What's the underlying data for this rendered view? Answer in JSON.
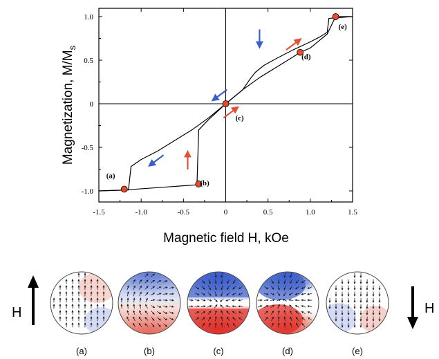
{
  "chart_data": {
    "type": "line",
    "xlabel": "Magnetic field H, kOe",
    "ylabel_main": "Magnetization, M/M",
    "ylabel_sub": "s",
    "xlim": [
      -1.5,
      1.5
    ],
    "ylim": [
      -1.0,
      1.0
    ],
    "x_ticks": [
      -1.5,
      -1,
      -0.5,
      0,
      0.5,
      1,
      1.5
    ],
    "x_tick_labels": [
      "-1.5",
      "-1.0",
      "-0.5",
      "0",
      "0.5",
      "1.0",
      "1.5"
    ],
    "y_ticks": [
      -1,
      -0.5,
      0,
      0.5,
      1
    ],
    "y_tick_labels": [
      "-1.0",
      "-0.5",
      "0",
      "0.5",
      "1.0"
    ],
    "series": [
      {
        "branch": "decreasing-field",
        "x": [
          1.5,
          1.22,
          1.2,
          1.1,
          1.0,
          0.8,
          0.6,
          0.45,
          0.4,
          0.35,
          0.3,
          0.2,
          0.0,
          -0.2,
          -0.4,
          -0.6,
          -0.8,
          -1.0,
          -1.12,
          -1.15,
          -1.5
        ],
        "y": [
          1.0,
          0.98,
          0.82,
          0.76,
          0.71,
          0.62,
          0.52,
          0.44,
          0.4,
          0.36,
          0.3,
          0.16,
          0.0,
          -0.16,
          -0.3,
          -0.42,
          -0.54,
          -0.64,
          -0.72,
          -0.99,
          -1.0
        ]
      },
      {
        "branch": "increasing-field",
        "x": [
          -1.5,
          -1.2,
          -0.34,
          -0.32,
          -0.2,
          0.0,
          0.2,
          0.4,
          0.6,
          0.8,
          0.88,
          1.0,
          1.1,
          1.2,
          1.3,
          1.5
        ],
        "y": [
          -1.0,
          -0.99,
          -0.93,
          -0.3,
          -0.18,
          0.0,
          0.16,
          0.3,
          0.42,
          0.54,
          0.59,
          0.64,
          0.72,
          0.8,
          1.0,
          1.0
        ]
      }
    ],
    "points": [
      {
        "label": "(a)",
        "x": -1.2,
        "y": -0.98
      },
      {
        "label": "(b)",
        "x": -0.32,
        "y": -0.92
      },
      {
        "label": "(c)",
        "x": 0.0,
        "y": 0.0
      },
      {
        "label": "(d)",
        "x": 0.88,
        "y": 0.59
      },
      {
        "label": "(e)",
        "x": 1.3,
        "y": 1.0
      }
    ],
    "direction_arrows": [
      {
        "color": "#3a5fc8",
        "direction": "down",
        "x": 0.4,
        "y": 0.75
      },
      {
        "color": "#e0533a",
        "direction": "up-right",
        "x": 0.8,
        "y": 0.68
      },
      {
        "color": "#3a5fc8",
        "direction": "down-left",
        "x": -0.07,
        "y": 0.1
      },
      {
        "color": "#e0533a",
        "direction": "up-right",
        "x": 0.06,
        "y": -0.1
      },
      {
        "color": "#3a5fc8",
        "direction": "down-left",
        "x": -0.82,
        "y": -0.65
      },
      {
        "color": "#e0533a",
        "direction": "up",
        "x": -0.45,
        "y": -0.65
      }
    ],
    "grid": false
  },
  "colors": {
    "point_fill": "#e84a2c",
    "blue": "#3a5fc8",
    "red": "#e0533a"
  },
  "diagrams": {
    "labels": [
      "(a)",
      "(b)",
      "(c)",
      "(d)",
      "(e)"
    ],
    "field_label_left": "H",
    "field_label_right": "H",
    "field_left_direction": "up",
    "field_right_direction": "down"
  }
}
